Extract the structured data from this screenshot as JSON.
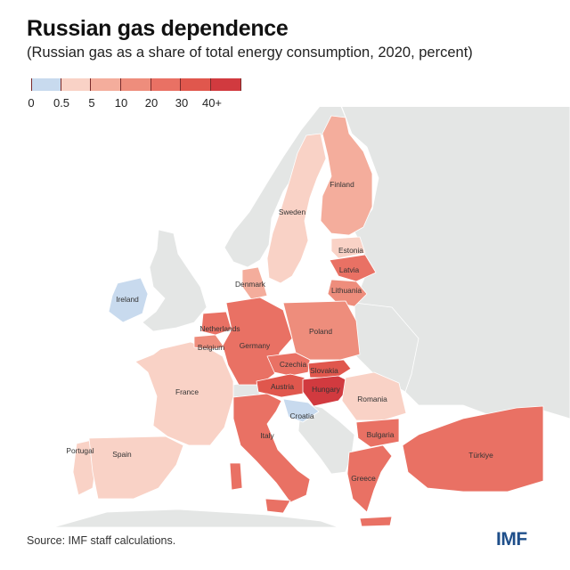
{
  "title": "Russian gas dependence",
  "subtitle": "(Russian gas as a share of total energy consumption, 2020, percent)",
  "legend": {
    "colors": [
      "#c8daee",
      "#f9d2c6",
      "#f4ad9c",
      "#ee8d7c",
      "#e97164",
      "#e0574d",
      "#d13a3f"
    ],
    "ticks": [
      "0",
      "0.5",
      "5",
      "10",
      "20",
      "30",
      "40+"
    ]
  },
  "classes": {
    "no_data": "#e4e6e5",
    "sea": "#ffffff",
    "c0": "#c8daee",
    "c1": "#f9d2c6",
    "c2": "#f4ad9c",
    "c3": "#ee8d7c",
    "c4": "#e97164",
    "c5": "#e0574d",
    "c6": "#d13a3f"
  },
  "countries": {
    "finland": "Finland",
    "sweden": "Sweden",
    "estonia": "Estonia",
    "latvia": "Latvia",
    "lithuania": "Lithuania",
    "denmark": "Denmark",
    "ireland": "Ireland",
    "netherlands": "Netherlands",
    "belgium": "Belgium",
    "germany": "Germany",
    "poland": "Poland",
    "czechia": "Czechia",
    "slovakia": "Slovakia",
    "austria": "Austria",
    "hungary": "Hungary",
    "france": "France",
    "croatia": "Croatia",
    "romania": "Romania",
    "italy": "Italy",
    "bulgaria": "Bulgaria",
    "portugal": "Portugal",
    "spain": "Spain",
    "greece": "Greece",
    "turkiye": "Türkiye"
  },
  "source": "Source: IMF staff calculations.",
  "logo": "IMF"
}
